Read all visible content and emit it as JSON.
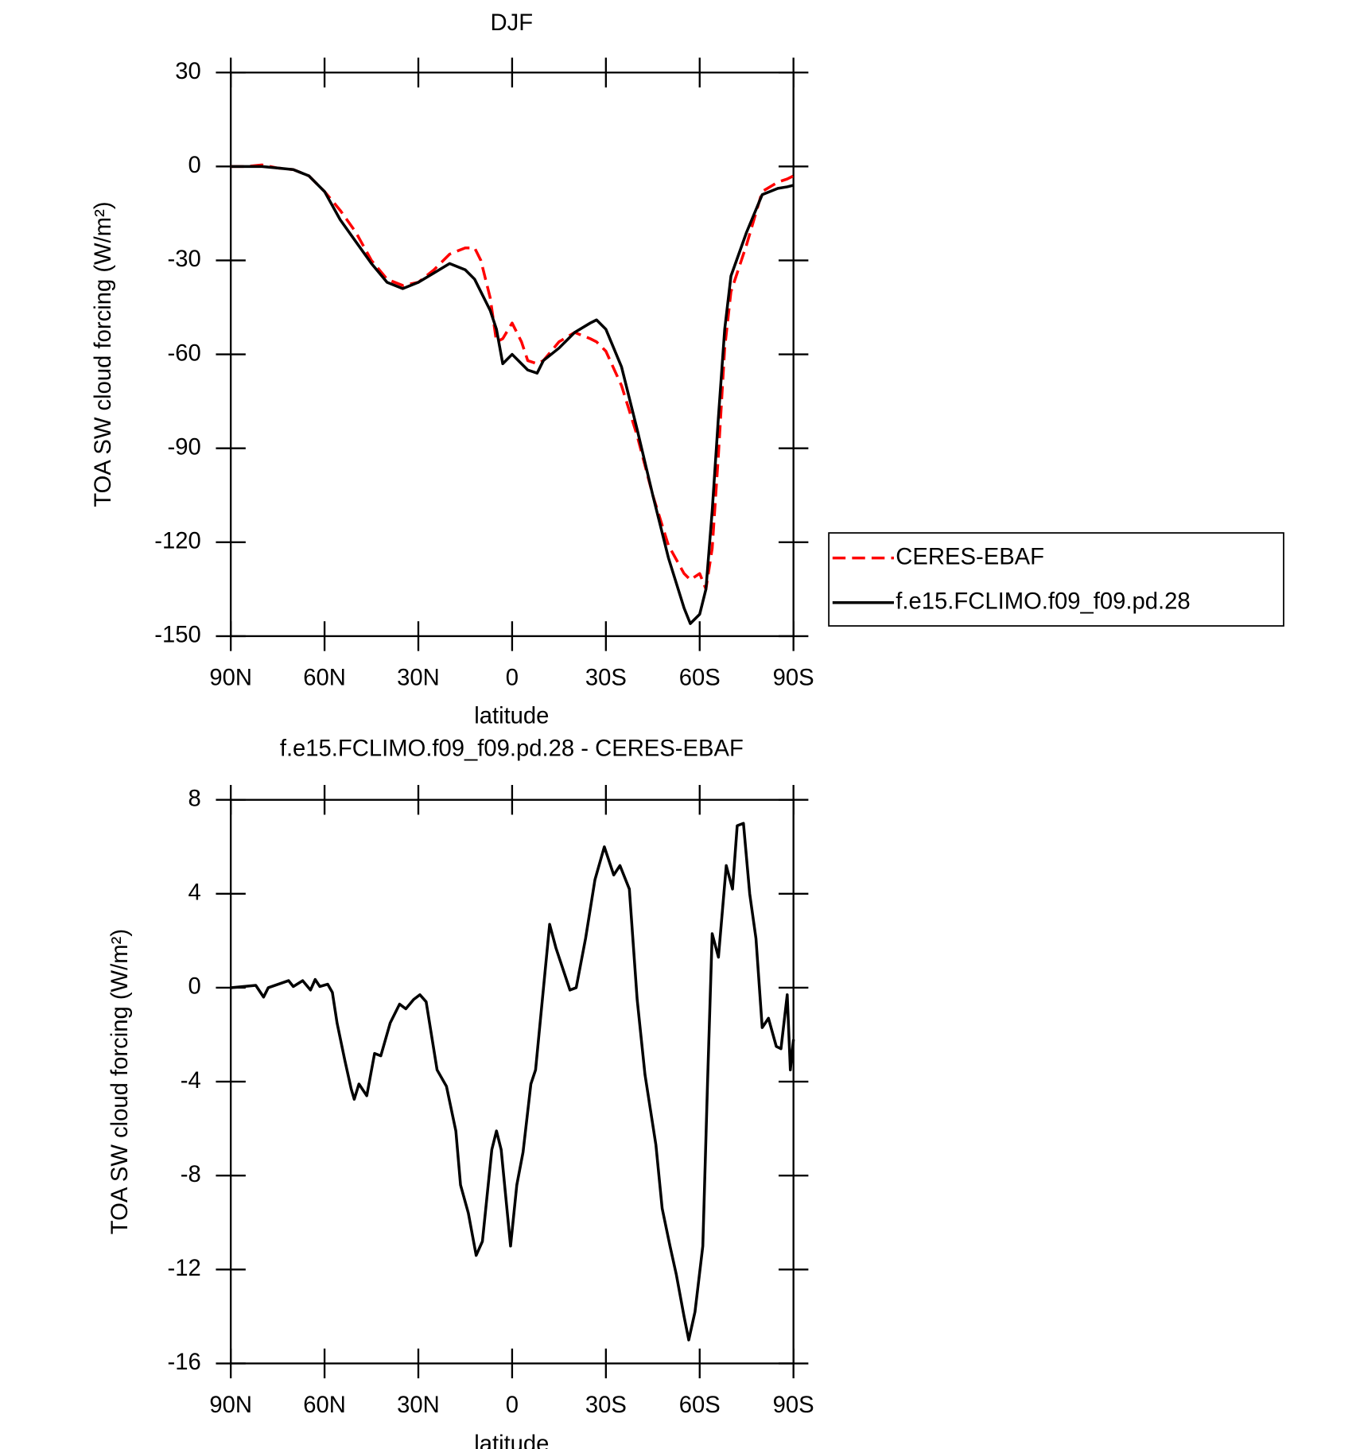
{
  "chart_data": [
    {
      "type": "line",
      "title": "DJF",
      "xlabel": "latitude",
      "ylabel": "TOA SW cloud forcing (W/m²)",
      "x": [
        90,
        85,
        80,
        75,
        70,
        65,
        60,
        55,
        50,
        45,
        40,
        35,
        30,
        25,
        20,
        15,
        12,
        10,
        7,
        5,
        3,
        0,
        -3,
        -5,
        -8,
        -10,
        -15,
        -20,
        -25,
        -27,
        -30,
        -35,
        -40,
        -45,
        -50,
        -55,
        -57,
        -60,
        -62,
        -64,
        -66,
        -68,
        -70,
        -75,
        -80,
        -85,
        -88,
        -90
      ],
      "series": [
        {
          "name": "CERES-EBAF",
          "color": "#ff0000",
          "style": "dashed",
          "values": [
            0,
            0,
            0.5,
            -0.5,
            -1,
            -3,
            -8,
            -14,
            -21,
            -30,
            -36,
            -38,
            -37,
            -33,
            -28,
            -26,
            -26,
            -30,
            -42,
            -56,
            -55,
            -50,
            -56,
            -62,
            -63,
            -62,
            -56,
            -53,
            -55,
            -56,
            -59,
            -70,
            -86,
            -105,
            -121,
            -130,
            -132,
            -130,
            -135,
            -122,
            -92,
            -58,
            -40,
            -25,
            -8,
            -5,
            -4,
            -3
          ]
        },
        {
          "name": "f.e15.FCLIMO.f09_f09.pd.28",
          "color": "#000000",
          "style": "solid",
          "values": [
            0,
            0,
            0,
            -0.5,
            -1,
            -3,
            -8,
            -17,
            -24,
            -31,
            -37,
            -39,
            -37,
            -34,
            -31,
            -33,
            -36,
            -40,
            -46,
            -52,
            -63,
            -60,
            -63,
            -65,
            -66,
            -62,
            -58,
            -53,
            -50,
            -49,
            -52,
            -64,
            -84,
            -105,
            -125,
            -141,
            -146,
            -143,
            -135,
            -110,
            -80,
            -52,
            -35,
            -21,
            -9,
            -7,
            -6.5,
            -6
          ]
        }
      ],
      "xlim": [
        90,
        -90
      ],
      "xticks": [
        {
          "value": 90,
          "label": "90N"
        },
        {
          "value": 60,
          "label": "60N"
        },
        {
          "value": 30,
          "label": "30N"
        },
        0,
        {
          "value": -30,
          "label": "30S"
        },
        {
          "value": -60,
          "label": "60S"
        },
        {
          "value": -90,
          "label": "90S"
        }
      ],
      "ylim": [
        -150,
        30
      ],
      "yticks": [
        -150,
        -120,
        -90,
        -60,
        -30,
        0,
        30
      ],
      "legend": "right"
    },
    {
      "type": "line",
      "title": "f.e15.FCLIMO.f09_f09.pd.28 - CERES-EBAF",
      "xlabel": "latitude",
      "ylabel": "TOA SW cloud forcing (W/m²)",
      "x": [
        90,
        82,
        79.5,
        78,
        71.5,
        70,
        67,
        64.5,
        63,
        61.5,
        59,
        57.5,
        56,
        53.5,
        51.5,
        50.5,
        49,
        46.5,
        44,
        42,
        39,
        36,
        34,
        31.5,
        29.5,
        27.5,
        24,
        21,
        18,
        16.5,
        14,
        11.5,
        9.5,
        6.5,
        5,
        3.5,
        0.5,
        -1.5,
        -3.5,
        -6,
        -7.5,
        -12,
        -14,
        -16,
        -18.5,
        -20.5,
        -23.5,
        -26.5,
        -29.5,
        -32.5,
        -34.5,
        -37.5,
        -40,
        -42.5,
        -46,
        -48,
        -50.5,
        -52.5,
        -55,
        -56.5,
        -58.5,
        -61,
        -62.5,
        -64,
        -66,
        -68.5,
        -70.5,
        -72,
        -74,
        -76,
        -78,
        -80,
        -82,
        -84.5,
        -86,
        -88,
        -89,
        -90
      ],
      "series": [
        {
          "name": null,
          "color": "#000000",
          "style": "solid",
          "values": [
            0,
            0.1,
            -0.4,
            0,
            0.3,
            0.05,
            0.3,
            -0.1,
            0.35,
            0.05,
            0.15,
            -0.2,
            -1.5,
            -3.1,
            -4.3,
            -4.75,
            -4.1,
            -4.6,
            -2.8,
            -2.9,
            -1.5,
            -0.7,
            -0.9,
            -0.5,
            -0.3,
            -0.6,
            -3.5,
            -4.2,
            -6.1,
            -8.4,
            -9.6,
            -11.4,
            -10.8,
            -6.9,
            -6.1,
            -6.9,
            -11,
            -8.4,
            -7,
            -4.1,
            -3.5,
            2.7,
            1.7,
            0.9,
            -0.1,
            0,
            2.1,
            4.6,
            6,
            4.8,
            5.2,
            4.2,
            -0.5,
            -3.7,
            -6.7,
            -9.4,
            -11,
            -12.2,
            -14,
            -15,
            -13.8,
            -11,
            -4.1,
            2.3,
            1.3,
            5.2,
            4.2,
            6.9,
            7,
            4,
            2.1,
            -1.7,
            -1.3,
            -2.5,
            -2.6,
            -0.3,
            -3.5,
            -2.2
          ]
        }
      ],
      "xlim": [
        90,
        -90
      ],
      "xticks": [
        {
          "value": 90,
          "label": "90N"
        },
        {
          "value": 60,
          "label": "60N"
        },
        {
          "value": 30,
          "label": "30N"
        },
        0,
        {
          "value": -30,
          "label": "30S"
        },
        {
          "value": -60,
          "label": "60S"
        },
        {
          "value": -90,
          "label": "90S"
        }
      ],
      "ylim": [
        -16,
        8
      ],
      "yticks": [
        -16,
        -12,
        -8,
        -4,
        0,
        4,
        8
      ]
    }
  ]
}
